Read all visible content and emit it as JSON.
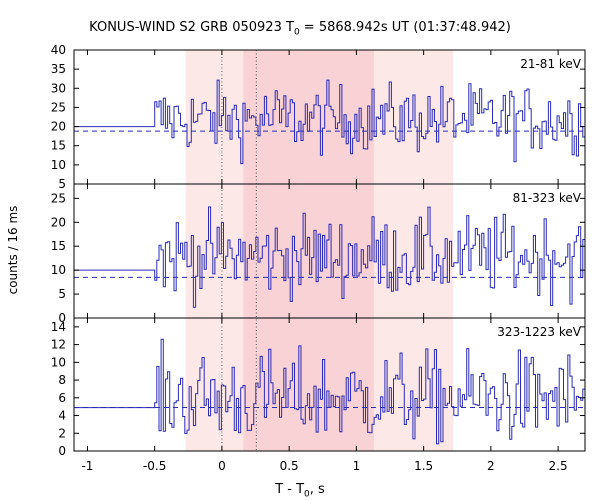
{
  "chart_data": {
    "type": "line",
    "title_parts": {
      "prefix": "KONUS-WIND S2 GRB 050923 T",
      "sub": "0",
      "suffix": " = 5868.942s UT (01:37:48.942)"
    },
    "xlabel_parts": {
      "prefix": "T - T",
      "sub": "0",
      "suffix": ", s"
    },
    "ylabel": "counts / 16 ms",
    "xlim": [
      -1.1,
      2.7
    ],
    "xticks": [
      -1,
      -0.5,
      0,
      0.5,
      1,
      1.5,
      2,
      2.5
    ],
    "xtick_labels": [
      "-1",
      "-0.5",
      "0",
      "0.5",
      "1",
      "1.5",
      "2",
      "2.5"
    ],
    "bin_width": 0.016,
    "pre_burst_end": -0.5,
    "shade_light": [
      -0.27,
      1.72
    ],
    "shade_dark": [
      0.16,
      1.13
    ],
    "dotted_lines": [
      0.0,
      0.256
    ],
    "line_color": "#2b2bb8",
    "shade_light_color": "#fde8e8",
    "shade_dark_color": "#f9d2d6",
    "panels": [
      {
        "band": "21-81 keV",
        "ylim": [
          5,
          40
        ],
        "yticks": [
          5,
          10,
          15,
          20,
          25,
          30,
          35,
          40
        ],
        "pre_level": 20,
        "background": 18.8,
        "mean": 22,
        "spread": 4.5
      },
      {
        "band": "81-323 keV",
        "ylim": [
          0,
          28
        ],
        "yticks": [
          0,
          5,
          10,
          15,
          20,
          25
        ],
        "pre_level": 10,
        "background": 8.5,
        "mean": 13,
        "spread": 4.2
      },
      {
        "band": "323-1223 keV",
        "ylim": [
          0,
          15
        ],
        "yticks": [
          0,
          2,
          4,
          6,
          8,
          10,
          12,
          14
        ],
        "pre_level": 4.9,
        "background": 4.9,
        "mean": 6,
        "spread": 2.6
      }
    ]
  }
}
